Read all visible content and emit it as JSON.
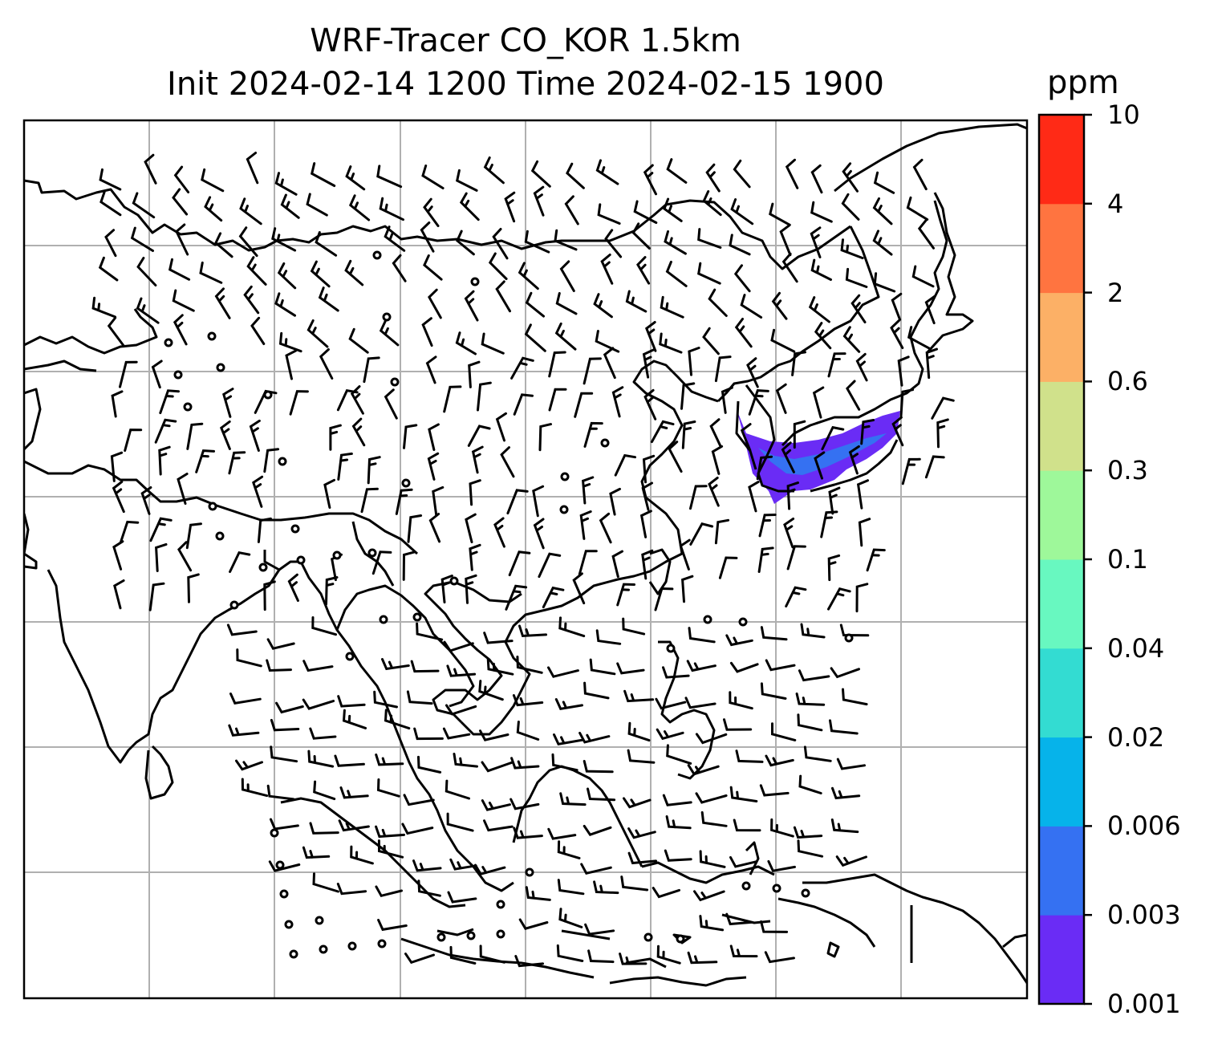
{
  "title": {
    "line1": "WRF-Tracer CO_KOR 1.5km",
    "line2": "Init 2024-02-14 1200 Time 2024-02-15 1900"
  },
  "colorbar": {
    "unit": "ppm",
    "levels": [
      "0.001",
      "0.003",
      "0.006",
      "0.02",
      "0.04",
      "0.1",
      "0.3",
      "0.6",
      "2",
      "4",
      "10"
    ],
    "colors": [
      "#6a2cf5",
      "#3571f2",
      "#06b3ea",
      "#33dcd2",
      "#68f8c0",
      "#9ef89a",
      "#d0e18b",
      "#fcb066",
      "#ff7440",
      "#ff2a16"
    ]
  },
  "map": {
    "gridlines": true,
    "plume_colors": [
      "#6a2cf5",
      "#3571f2"
    ]
  }
}
